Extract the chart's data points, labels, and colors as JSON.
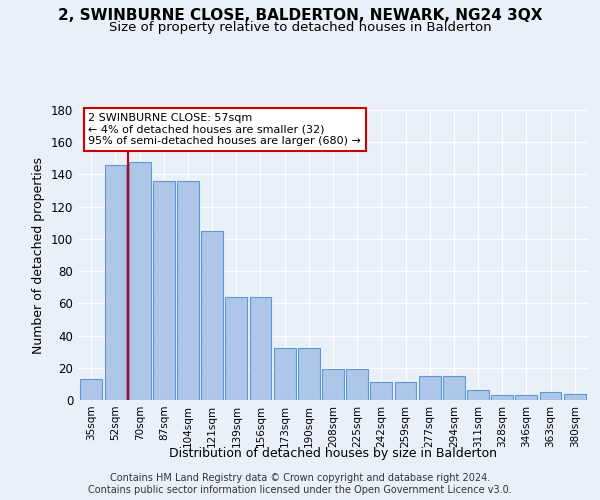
{
  "title": "2, SWINBURNE CLOSE, BALDERTON, NEWARK, NG24 3QX",
  "subtitle": "Size of property relative to detached houses in Balderton",
  "xlabel": "Distribution of detached houses by size in Balderton",
  "ylabel": "Number of detached properties",
  "categories": [
    "35sqm",
    "52sqm",
    "70sqm",
    "87sqm",
    "104sqm",
    "121sqm",
    "139sqm",
    "156sqm",
    "173sqm",
    "190sqm",
    "208sqm",
    "225sqm",
    "242sqm",
    "259sqm",
    "277sqm",
    "294sqm",
    "311sqm",
    "328sqm",
    "346sqm",
    "363sqm",
    "380sqm"
  ],
  "bar_values": [
    13,
    146,
    148,
    136,
    136,
    105,
    64,
    64,
    32,
    32,
    19,
    19,
    11,
    11,
    15,
    15,
    6,
    3,
    3,
    5,
    4
  ],
  "bar_color": "#aec6e8",
  "bar_edge_color": "#5b9bd5",
  "ref_line_index": 1.5,
  "ref_line_color": "#cc0000",
  "annotation_line1": "2 SWINBURNE CLOSE: 57sqm",
  "annotation_line2": "← 4% of detached houses are smaller (32)",
  "annotation_line3": "95% of semi-detached houses are larger (680) →",
  "ylim_max": 180,
  "yticks": [
    0,
    20,
    40,
    60,
    80,
    100,
    120,
    140,
    160,
    180
  ],
  "bg_color": "#eaf0f8",
  "grid_color": "#ffffff",
  "footer": "Contains HM Land Registry data © Crown copyright and database right 2024.\nContains public sector information licensed under the Open Government Licence v3.0."
}
